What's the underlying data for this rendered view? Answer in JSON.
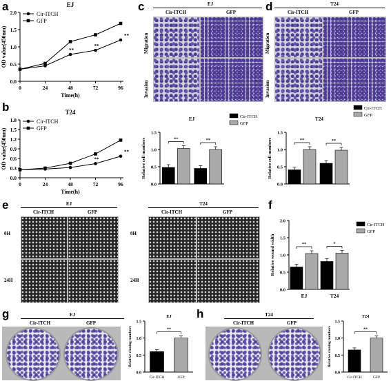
{
  "panels": {
    "a": {
      "letter": "a",
      "title": "EJ"
    },
    "b": {
      "letter": "b",
      "title": "T24"
    },
    "c": {
      "letter": "c",
      "title": "EJ",
      "col1": "Cir-ITCH",
      "col2": "GFP",
      "row1": "Migration",
      "row2": "Invasion"
    },
    "d": {
      "letter": "d",
      "title": "T24",
      "col1": "Cir-ITCH",
      "col2": "GFP",
      "row1": "Migration",
      "row2": "Invasion"
    },
    "e": {
      "letter": "e",
      "left_title": "EJ",
      "right_title": "T24",
      "col1": "Cir-ITCH",
      "col2": "GFP",
      "row1": "0H",
      "row2": "24H"
    },
    "f": {
      "letter": "f"
    },
    "g": {
      "letter": "g",
      "title": "EJ",
      "col1": "Cir-ITCH",
      "col2": "GFP"
    },
    "h": {
      "letter": "h",
      "title": "T24",
      "col1": "Cir-ITCH",
      "col2": "GFP"
    }
  },
  "colors": {
    "cir": "#000000",
    "gfp": "#a9a9a9"
  },
  "chart_data": [
    {
      "id": "a",
      "type": "line",
      "title": "EJ",
      "xlabel": "Time(h)",
      "ylabel": "OD value(450nm)",
      "x": [
        0,
        24,
        48,
        72,
        96
      ],
      "xticks": [
        "0",
        "24",
        "48",
        "72",
        "96"
      ],
      "yticks": [
        "0.0",
        "0.5",
        "1.0",
        "1.5",
        "2.0"
      ],
      "ylim": [
        0,
        2.0
      ],
      "series": [
        {
          "name": "Cir-ITCH",
          "marker": "circle",
          "values": [
            0.35,
            0.45,
            0.78,
            0.9,
            1.2
          ]
        },
        {
          "name": "GFP",
          "marker": "square",
          "values": [
            0.35,
            0.52,
            1.15,
            1.35,
            1.68
          ]
        }
      ],
      "annotations": [
        "**",
        "**",
        "**"
      ]
    },
    {
      "id": "b",
      "type": "line",
      "title": "T24",
      "xlabel": "Time(h)",
      "ylabel": "OD value(450nm)",
      "x": [
        0,
        24,
        48,
        72,
        96
      ],
      "xticks": [
        "0",
        "24",
        "48",
        "72",
        "96"
      ],
      "yticks": [
        "0.0",
        "0.3",
        "0.6",
        "0.9",
        "1.2",
        "1.5",
        "1.8"
      ],
      "ylim": [
        0,
        1.8
      ],
      "series": [
        {
          "name": "Cir-ITCH",
          "marker": "circle",
          "values": [
            0.25,
            0.27,
            0.32,
            0.44,
            0.67
          ]
        },
        {
          "name": "GFP",
          "marker": "square",
          "values": [
            0.25,
            0.3,
            0.45,
            0.74,
            1.17
          ]
        }
      ],
      "annotations": [
        "**",
        "**"
      ]
    },
    {
      "id": "c",
      "type": "bar",
      "title": "EJ",
      "ylabel": "Relative cell numbers",
      "categories": [
        "Migration",
        "Invasion"
      ],
      "yticks": [
        "0.0",
        "0.5",
        "1.0",
        "1.5"
      ],
      "ylim": [
        0,
        1.5
      ],
      "series": [
        {
          "name": "Cir-ITCH",
          "values": [
            0.48,
            0.45
          ]
        },
        {
          "name": "GFP",
          "values": [
            1.03,
            1.0
          ]
        }
      ],
      "annotations": [
        "**",
        "**"
      ]
    },
    {
      "id": "d",
      "type": "bar",
      "title": "T24",
      "ylabel": "Relative cell numbers",
      "categories": [
        "Migration",
        "Invasion"
      ],
      "yticks": [
        "0.0",
        "0.5",
        "1.0",
        "1.5"
      ],
      "ylim": [
        0,
        1.5
      ],
      "series": [
        {
          "name": "Cir-ITCH",
          "values": [
            0.41,
            0.6
          ]
        },
        {
          "name": "GFP",
          "values": [
            1.0,
            0.98
          ]
        }
      ],
      "annotations": [
        "**",
        "**"
      ]
    },
    {
      "id": "f",
      "type": "bar",
      "ylabel": "Relative wound width",
      "categories": [
        "EJ",
        "T24"
      ],
      "yticks": [
        "0.0",
        "0.5",
        "1.0",
        "1.5",
        "2.0"
      ],
      "ylim": [
        0,
        2.0
      ],
      "series": [
        {
          "name": "Cir-ITCH",
          "values": [
            0.65,
            0.81
          ]
        },
        {
          "name": "GFP",
          "values": [
            1.04,
            1.05
          ]
        }
      ],
      "annotations": [
        "**",
        "*"
      ]
    },
    {
      "id": "g",
      "type": "bar",
      "title": "EJ",
      "ylabel": "Relative cloning numbers",
      "categories": [
        "Cir-ITCH",
        "GFP"
      ],
      "yticks": [
        "0.0",
        "0.5",
        "1.0",
        "1.5"
      ],
      "ylim": [
        0,
        1.5
      ],
      "values": [
        0.6,
        1.0
      ],
      "annotations": [
        "**"
      ]
    },
    {
      "id": "h",
      "type": "bar",
      "title": "T24",
      "ylabel": "Relative cloning numbers",
      "categories": [
        "Cir-ITCH",
        "GFP"
      ],
      "yticks": [
        "0.0",
        "0.5",
        "1.0",
        "1.5"
      ],
      "ylim": [
        0,
        1.5
      ],
      "values": [
        0.65,
        1.0
      ],
      "annotations": [
        "**"
      ]
    }
  ]
}
